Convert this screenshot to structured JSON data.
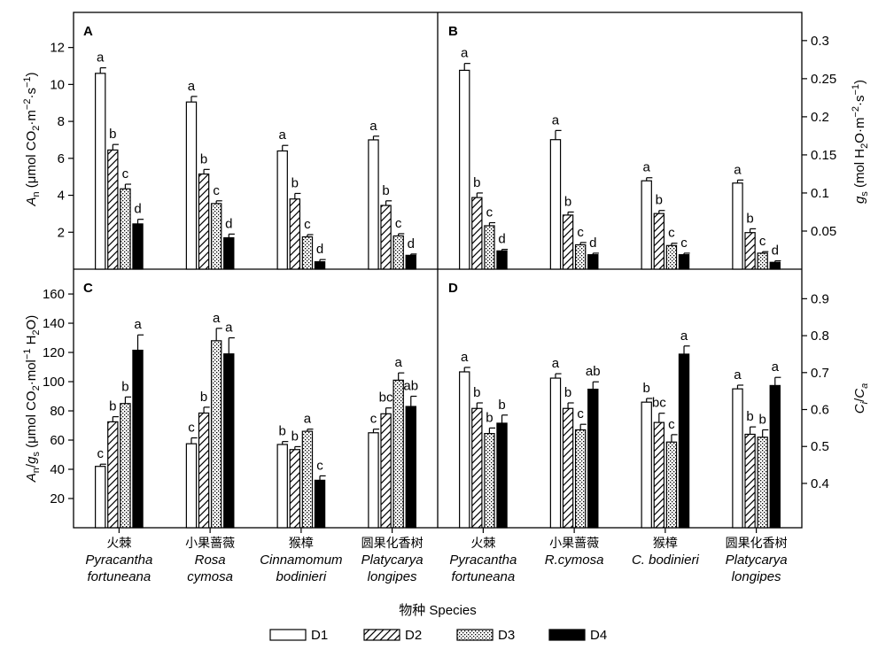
{
  "colors": {
    "D1": "#ffffff",
    "D2": "hatch-diagonal",
    "D3": "stipple",
    "D4": "#000000",
    "axis": "#000000"
  },
  "xlabel": "物种  Species",
  "legend": {
    "position": "bottom",
    "items": [
      "D1",
      "D2",
      "D3",
      "D4"
    ]
  },
  "left_categories": [
    {
      "cn": "火棘",
      "l1": "Pyracantha",
      "l2": "fortuneana"
    },
    {
      "cn": "小果蔷薇",
      "l1": "Rosa",
      "l2": "cymosa"
    },
    {
      "cn": "猴樟",
      "l1": "Cinnamomum",
      "l2": "bodinieri"
    },
    {
      "cn": "圆果化香树",
      "l1": "Platycarya",
      "l2": "longipes"
    }
  ],
  "right_categories": [
    {
      "cn": "火棘",
      "l1": "Pyracantha",
      "l2": "fortuneana"
    },
    {
      "cn": "小果蔷薇",
      "l1": "R.cymosa",
      "l2": ""
    },
    {
      "cn": "猴樟",
      "l1": "C. bodinieri",
      "l2": ""
    },
    {
      "cn": "圆果化香树",
      "l1": "Platycarya",
      "l2": "longipes"
    }
  ],
  "chart_data": [
    {
      "panel": "A",
      "type": "bar",
      "ylabel": "An (μmol CO2·m−2·s−1)",
      "ylim": [
        0,
        13.9
      ],
      "yticks": [
        2,
        4,
        6,
        8,
        10,
        12
      ],
      "series": [
        {
          "name": "D1",
          "values": [
            10.6,
            9.05,
            6.4,
            7.0
          ],
          "errors": [
            0.3,
            0.3,
            0.3,
            0.2
          ],
          "sig": [
            "a",
            "a",
            "a",
            "a"
          ]
        },
        {
          "name": "D2",
          "values": [
            6.45,
            5.15,
            3.8,
            3.45
          ],
          "errors": [
            0.3,
            0.25,
            0.3,
            0.25
          ],
          "sig": [
            "b",
            "b",
            "b",
            "b"
          ]
        },
        {
          "name": "D3",
          "values": [
            4.35,
            3.55,
            1.75,
            1.8
          ],
          "errors": [
            0.25,
            0.15,
            0.12,
            0.12
          ],
          "sig": [
            "c",
            "c",
            "c",
            "c"
          ]
        },
        {
          "name": "D4",
          "values": [
            2.45,
            1.7,
            0.4,
            0.75
          ],
          "errors": [
            0.25,
            0.2,
            0.12,
            0.07
          ],
          "sig": [
            "d",
            "d",
            "d",
            "d"
          ]
        }
      ]
    },
    {
      "panel": "B",
      "type": "bar",
      "ylabel": "gs (mol H2O·m−2·s−1)",
      "ylim": [
        0,
        0.337
      ],
      "yticks": [
        0.05,
        0.1,
        0.15,
        0.2,
        0.25,
        0.3
      ],
      "series": [
        {
          "name": "D1",
          "values": [
            0.261,
            0.17,
            0.116,
            0.113
          ],
          "errors": [
            0.009,
            0.012,
            0.004,
            0.004
          ],
          "sig": [
            "a",
            "a",
            "a",
            "a"
          ]
        },
        {
          "name": "D2",
          "values": [
            0.094,
            0.071,
            0.073,
            0.048
          ],
          "errors": [
            0.006,
            0.004,
            0.004,
            0.005
          ],
          "sig": [
            "b",
            "b",
            "b",
            "b"
          ]
        },
        {
          "name": "D3",
          "values": [
            0.057,
            0.032,
            0.031,
            0.021
          ],
          "errors": [
            0.004,
            0.003,
            0.003,
            0.002
          ],
          "sig": [
            "c",
            "c",
            "c",
            "c"
          ]
        },
        {
          "name": "D4",
          "values": [
            0.024,
            0.019,
            0.019,
            0.009
          ],
          "errors": [
            0.002,
            0.002,
            0.002,
            0.002
          ],
          "sig": [
            "d",
            "d",
            "c",
            "d"
          ]
        }
      ]
    },
    {
      "panel": "C",
      "type": "bar",
      "ylabel": "An/gs (μmol CO2·mol−1 H2O)",
      "ylim": [
        0,
        177
      ],
      "yticks": [
        20,
        40,
        60,
        80,
        100,
        120,
        140,
        160
      ],
      "series": [
        {
          "name": "D1",
          "values": [
            42,
            57.5,
            57,
            65
          ],
          "errors": [
            1.5,
            4,
            2,
            2.5
          ],
          "sig": [
            "c",
            "c",
            "b",
            "c"
          ]
        },
        {
          "name": "D2",
          "values": [
            72.5,
            78.5,
            53.5,
            78
          ],
          "errors": [
            3.5,
            4,
            2,
            4
          ],
          "sig": [
            "b",
            "b",
            "b",
            "bc"
          ]
        },
        {
          "name": "D3",
          "values": [
            85,
            128,
            66,
            101
          ],
          "errors": [
            4.5,
            8.5,
            1.5,
            5
          ],
          "sig": [
            "b",
            "a",
            "a",
            "a"
          ]
        },
        {
          "name": "D4",
          "values": [
            121.5,
            119,
            32.5,
            83
          ],
          "errors": [
            10.5,
            11,
            3,
            7
          ],
          "sig": [
            "a",
            "a",
            "c",
            "ab"
          ]
        }
      ]
    },
    {
      "panel": "D",
      "type": "bar",
      "ylabel": "Ci/Ca",
      "ylim": [
        0.28,
        0.98
      ],
      "yticks": [
        0.4,
        0.5,
        0.6,
        0.7,
        0.8,
        0.9
      ],
      "series": [
        {
          "name": "D1",
          "values": [
            0.702,
            0.685,
            0.62,
            0.656
          ],
          "errors": [
            0.012,
            0.012,
            0.01,
            0.01
          ],
          "sig": [
            "a",
            "a",
            "b",
            "a"
          ]
        },
        {
          "name": "D2",
          "values": [
            0.603,
            0.603,
            0.565,
            0.533
          ],
          "errors": [
            0.015,
            0.015,
            0.025,
            0.02
          ],
          "sig": [
            "b",
            "b",
            "bc",
            "b"
          ]
        },
        {
          "name": "D3",
          "values": [
            0.535,
            0.545,
            0.512,
            0.525
          ],
          "errors": [
            0.015,
            0.015,
            0.02,
            0.02
          ],
          "sig": [
            "b",
            "c",
            "c",
            "b"
          ]
        },
        {
          "name": "D4",
          "values": [
            0.563,
            0.655,
            0.75,
            0.665
          ],
          "errors": [
            0.022,
            0.02,
            0.022,
            0.022
          ],
          "sig": [
            "b",
            "ab",
            "a",
            "a"
          ]
        }
      ]
    }
  ]
}
